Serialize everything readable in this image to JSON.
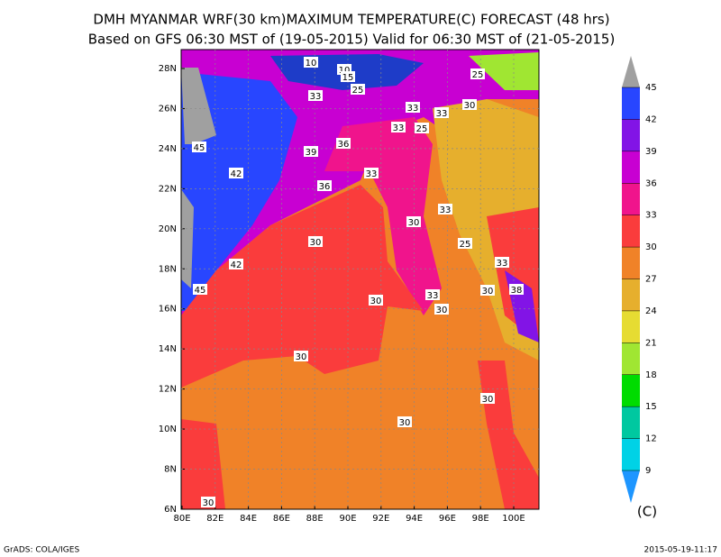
{
  "title": "DMH MYANMAR WRF(30 km)MAXIMUM TEMPERATURE(C) FORECAST (48 hrs)",
  "subtitle": "Based on GFS 06:30 MST of (19-05-2015) Valid for 06:30 MST of (21-05-2015)",
  "map": {
    "lat_labels": [
      "28N",
      "26N",
      "24N",
      "22N",
      "20N",
      "18N",
      "16N",
      "14N",
      "12N",
      "10N",
      "8N",
      "6N"
    ],
    "lon_labels": [
      "80E",
      "82E",
      "84E",
      "86E",
      "88E",
      "90E",
      "92E",
      "94E",
      "96E",
      "98E",
      "100E"
    ],
    "contour_labels": [
      "10",
      "10",
      "15",
      "25",
      "25",
      "33",
      "33",
      "33",
      "25",
      "33",
      "30",
      "45",
      "36",
      "39",
      "42",
      "33",
      "36",
      "33",
      "30",
      "30",
      "25",
      "42",
      "33",
      "45",
      "33",
      "30",
      "38",
      "30",
      "30",
      "30",
      "30",
      "30",
      "30"
    ]
  },
  "colorbar": {
    "labels": [
      45,
      42,
      39,
      36,
      33,
      30,
      27,
      24,
      21,
      18,
      15,
      12,
      9
    ],
    "colors": [
      "#2846ff",
      "#8214e6",
      "#c800d2",
      "#f0148c",
      "#fa3c3c",
      "#f08228",
      "#e6af2d",
      "#e6dc32",
      "#a0e632",
      "#00dc00",
      "#00c8a0",
      "#00d2e6"
    ],
    "unit": "(C)"
  },
  "footer": {
    "left": "GrADS: COLA/IGES",
    "right": "2015-05-19-11:17"
  }
}
